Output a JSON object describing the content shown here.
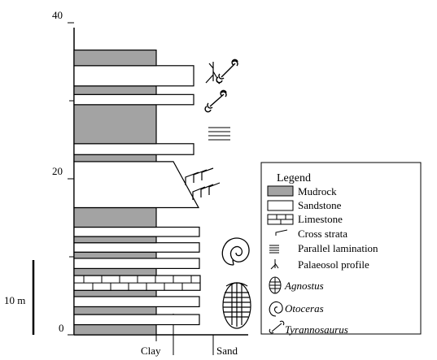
{
  "column": {
    "y_ticks": [
      {
        "value": 0,
        "label": "0"
      },
      {
        "value": 20,
        "label": "20"
      },
      {
        "value": 40,
        "label": "40"
      }
    ],
    "minor_ticks": [
      10,
      30
    ],
    "scale_bar_label": "10 m",
    "x_labels": {
      "clay": "Clay",
      "sand": "Sand"
    },
    "beds": [
      {
        "bottom": 0.0,
        "top": 1.3,
        "lith": "mudrock"
      },
      {
        "bottom": 1.3,
        "top": 2.6,
        "lith": "sandstone"
      },
      {
        "bottom": 2.6,
        "top": 3.6,
        "lith": "mudrock"
      },
      {
        "bottom": 3.6,
        "top": 4.9,
        "lith": "sandstone"
      },
      {
        "bottom": 4.9,
        "top": 5.7,
        "lith": "mudrock"
      },
      {
        "bottom": 5.7,
        "top": 7.6,
        "lith": "limestone"
      },
      {
        "bottom": 7.6,
        "top": 8.5,
        "lith": "mudrock"
      },
      {
        "bottom": 8.5,
        "top": 9.8,
        "lith": "sandstone"
      },
      {
        "bottom": 9.8,
        "top": 10.6,
        "lith": "mudrock"
      },
      {
        "bottom": 10.6,
        "top": 11.8,
        "lith": "sandstone"
      },
      {
        "bottom": 11.8,
        "top": 12.6,
        "lith": "mudrock"
      },
      {
        "bottom": 12.6,
        "top": 13.8,
        "lith": "sandstone"
      },
      {
        "bottom": 13.8,
        "top": 16.3,
        "lith": "mudrock"
      },
      {
        "bottom": 16.3,
        "top": 22.2,
        "lith": "sandstone",
        "shape": "fining-up"
      },
      {
        "bottom": 22.2,
        "top": 23.1,
        "lith": "mudrock"
      },
      {
        "bottom": 23.1,
        "top": 24.5,
        "lith": "sandstone"
      },
      {
        "bottom": 24.5,
        "top": 29.5,
        "lith": "mudrock"
      },
      {
        "bottom": 29.5,
        "top": 30.8,
        "lith": "sandstone"
      },
      {
        "bottom": 30.8,
        "top": 31.9,
        "lith": "mudrock"
      },
      {
        "bottom": 31.9,
        "top": 34.5,
        "lith": "sandstone"
      },
      {
        "bottom": 34.5,
        "top": 36.5,
        "lith": "mudrock"
      }
    ],
    "grain_widths": {
      "mudrock": 0,
      "sandstone_small": 1
    },
    "symbols": [
      {
        "name": "trilobite-icon",
        "depth": 6.5
      },
      {
        "name": "ammonite-icon",
        "depth": 14.5
      },
      {
        "name": "cross-strata-icon",
        "depth": 21.0
      },
      {
        "name": "parallel-lamination-icon",
        "depth": 27.2
      },
      {
        "name": "bone-icon",
        "depth": 31.0
      },
      {
        "name": "palaeosol-icon",
        "depth": 34.5
      },
      {
        "name": "bone-icon",
        "depth": 35.8
      }
    ]
  },
  "legend": {
    "title": "Legend",
    "items": [
      {
        "name": "legend-mudrock",
        "symbol": "mudrock-swatch",
        "label": "Mudrock",
        "italic": false
      },
      {
        "name": "legend-sandstone",
        "symbol": "sandstone-swatch",
        "label": "Sandstone",
        "italic": false
      },
      {
        "name": "legend-limestone",
        "symbol": "limestone-swatch",
        "label": "Limestone",
        "italic": false
      },
      {
        "name": "legend-cross-strata",
        "symbol": "cross-strata-icon",
        "label": "Cross strata",
        "italic": false
      },
      {
        "name": "legend-parallel-lamination",
        "symbol": "parallel-lamination-icon",
        "label": "Parallel lamination",
        "italic": false
      },
      {
        "name": "legend-palaeosol",
        "symbol": "palaeosol-icon",
        "label": "Palaeosol profile",
        "italic": false
      },
      {
        "name": "legend-agnostus",
        "symbol": "trilobite-icon",
        "label": "Agnostus",
        "italic": true
      },
      {
        "name": "legend-otoceras",
        "symbol": "ammonite-icon",
        "label": "Otoceras",
        "italic": true
      },
      {
        "name": "legend-tyrannosaurus",
        "symbol": "bone-icon",
        "label": "Tyrannosaurus",
        "italic": true
      }
    ]
  },
  "colors": {
    "mudrock": "#a3a3a3",
    "sandstone": "#ffffff",
    "line": "#000000"
  }
}
